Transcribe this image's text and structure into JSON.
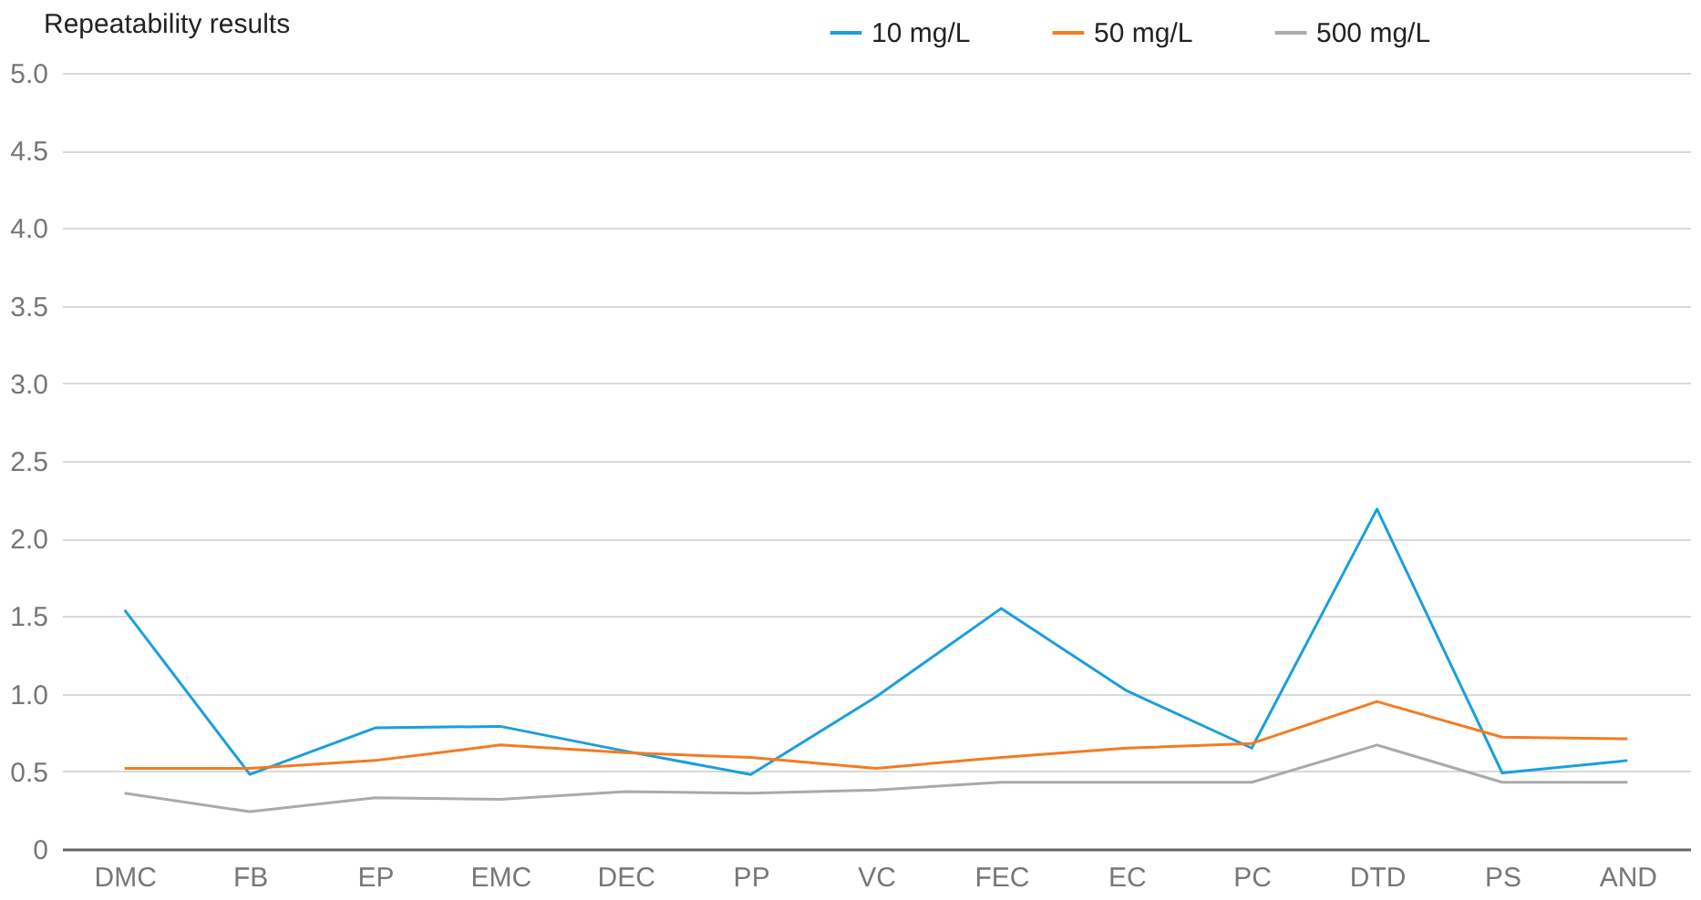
{
  "chart_data": {
    "type": "line",
    "title": "Repeatability results",
    "categories": [
      "DMC",
      "FB",
      "EP",
      "EMC",
      "DEC",
      "PP",
      "VC",
      "FEC",
      "EC",
      "PC",
      "DTD",
      "PS",
      "AND"
    ],
    "series": [
      {
        "name": "10 mg/L",
        "color": "#1a9fdb",
        "values": [
          1.54,
          0.48,
          0.78,
          0.79,
          0.63,
          0.48,
          0.98,
          1.55,
          1.02,
          0.65,
          2.19,
          0.49,
          0.57
        ]
      },
      {
        "name": "50 mg/L",
        "color": "#f47b20",
        "values": [
          0.52,
          0.52,
          0.57,
          0.67,
          0.62,
          0.59,
          0.52,
          0.59,
          0.65,
          0.68,
          0.95,
          0.72,
          0.71
        ]
      },
      {
        "name": "500 mg/L",
        "color": "#aaaaaa",
        "values": [
          0.36,
          0.24,
          0.33,
          0.32,
          0.37,
          0.36,
          0.38,
          0.43,
          0.43,
          0.43,
          0.67,
          0.43,
          0.43
        ]
      }
    ],
    "ylim": [
      0,
      5
    ],
    "yticks": [
      {
        "value": 0,
        "label": "0"
      },
      {
        "value": 0.5,
        "label": "0.5"
      },
      {
        "value": 1,
        "label": "1.0"
      },
      {
        "value": 1.5,
        "label": "1.5"
      },
      {
        "value": 2,
        "label": "2.0"
      },
      {
        "value": 2.5,
        "label": "2.5"
      },
      {
        "value": 3,
        "label": "3.0"
      },
      {
        "value": 3.5,
        "label": "3.5"
      },
      {
        "value": 4,
        "label": "4.0"
      },
      {
        "value": 4.5,
        "label": "4.5"
      },
      {
        "value": 5,
        "label": "5.0"
      }
    ],
    "grid": "y",
    "legend": "top right",
    "marker": "none",
    "line_style": "solid"
  }
}
